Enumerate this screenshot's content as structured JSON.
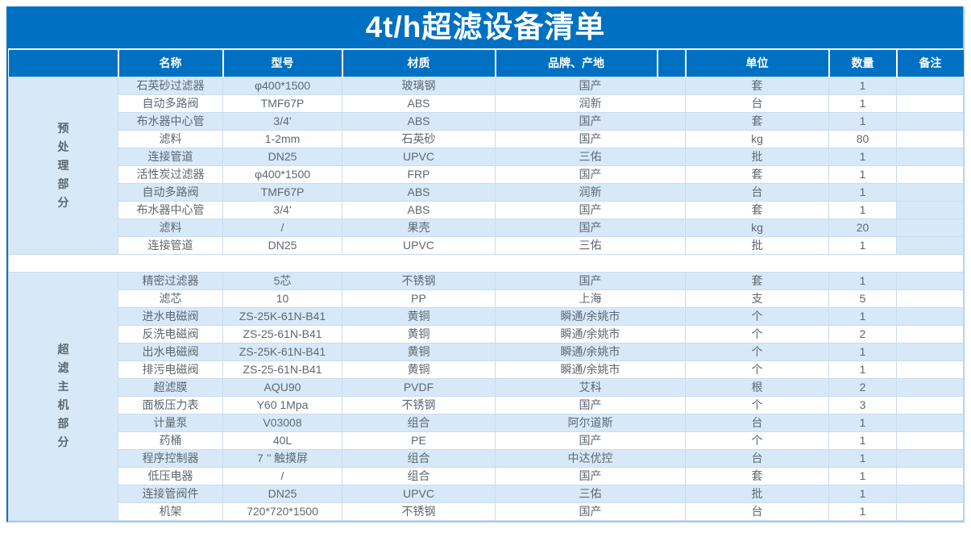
{
  "title": "4t/h超滤设备清单",
  "colors": {
    "header_blue": "#0070c3",
    "row_stripe_blue": "#d7e9f9",
    "border_light": "#cbdbea",
    "body_text": "#5d6770",
    "title_text": "#ffffff"
  },
  "table": {
    "columns": [
      {
        "key": "name",
        "label": "名称"
      },
      {
        "key": "model",
        "label": "型号"
      },
      {
        "key": "material",
        "label": "材质"
      },
      {
        "key": "brand",
        "label": "品牌、产地"
      },
      {
        "key": "unit",
        "label": "单位"
      },
      {
        "key": "qty",
        "label": "数量"
      },
      {
        "key": "note",
        "label": "备注"
      }
    ],
    "sections": [
      {
        "label": "预处理部分",
        "extra_blue_note_rows": [
          7,
          9
        ],
        "rows": [
          {
            "name": "石英砂过滤器",
            "model": "φ400*1500",
            "material": "玻璃钢",
            "brand": "国产",
            "unit": "套",
            "qty": "1",
            "note": ""
          },
          {
            "name": "自动多路阀",
            "model": "TMF67P",
            "material": "ABS",
            "brand": "润新",
            "unit": "台",
            "qty": "1",
            "note": ""
          },
          {
            "name": "布水器中心管",
            "model": "3/4'",
            "material": "ABS",
            "brand": "国产",
            "unit": "套",
            "qty": "1",
            "note": ""
          },
          {
            "name": "滤料",
            "model": "1-2mm",
            "material": "石英砂",
            "brand": "国产",
            "unit": "kg",
            "qty": "80",
            "note": ""
          },
          {
            "name": "连接管道",
            "model": "DN25",
            "material": "UPVC",
            "brand": "三佑",
            "unit": "批",
            "qty": "1",
            "note": ""
          },
          {
            "name": "活性炭过滤器",
            "model": "φ400*1500",
            "material": "FRP",
            "brand": "国产",
            "unit": "套",
            "qty": "1",
            "note": ""
          },
          {
            "name": "自动多路阀",
            "model": "TMF67P",
            "material": "ABS",
            "brand": "润新",
            "unit": "台",
            "qty": "1",
            "note": ""
          },
          {
            "name": "布水器中心管",
            "model": "3/4'",
            "material": "ABS",
            "brand": "国产",
            "unit": "套",
            "qty": "1",
            "note": ""
          },
          {
            "name": "滤料",
            "model": "/",
            "material": "果壳",
            "brand": "国产",
            "unit": "kg",
            "qty": "20",
            "note": ""
          },
          {
            "name": "连接管道",
            "model": "DN25",
            "material": "UPVC",
            "brand": "三佑",
            "unit": "批",
            "qty": "1",
            "note": ""
          }
        ]
      },
      {
        "label": "超滤主机部分",
        "extra_blue_note_rows": [],
        "rows": [
          {
            "name": "精密过滤器",
            "model": "5芯",
            "material": "不锈钢",
            "brand": "国产",
            "unit": "套",
            "qty": "1",
            "note": ""
          },
          {
            "name": "滤芯",
            "model": "10",
            "material": "PP",
            "brand": "上海",
            "unit": "支",
            "qty": "5",
            "note": ""
          },
          {
            "name": "进水电磁阀",
            "model": "ZS-25K-61N-B41",
            "material": "黄铜",
            "brand": "瞬通/余姚市",
            "unit": "个",
            "qty": "1",
            "note": ""
          },
          {
            "name": "反洗电磁阀",
            "model": "ZS-25-61N-B41",
            "material": "黄铜",
            "brand": "瞬通/余姚市",
            "unit": "个",
            "qty": "2",
            "note": ""
          },
          {
            "name": "出水电磁阀",
            "model": "ZS-25K-61N-B41",
            "material": "黄铜",
            "brand": "瞬通/余姚市",
            "unit": "个",
            "qty": "1",
            "note": ""
          },
          {
            "name": "排污电磁阀",
            "model": "ZS-25-61N-B41",
            "material": "黄铜",
            "brand": "瞬通/余姚市",
            "unit": "个",
            "qty": "1",
            "note": ""
          },
          {
            "name": "超滤膜",
            "model": "AQU90",
            "material": "PVDF",
            "brand": "艾科",
            "unit": "根",
            "qty": "2",
            "note": ""
          },
          {
            "name": "面板压力表",
            "model": "Y60 1Mpa",
            "material": "不锈钢",
            "brand": "国产",
            "unit": "个",
            "qty": "3",
            "note": ""
          },
          {
            "name": "计量泵",
            "model": "V03008",
            "material": "组合",
            "brand": "阿尔道斯",
            "unit": "台",
            "qty": "1",
            "note": ""
          },
          {
            "name": "药桶",
            "model": "40L",
            "material": "PE",
            "brand": "国产",
            "unit": "个",
            "qty": "1",
            "note": ""
          },
          {
            "name": "程序控制器",
            "model": "7 ’’ 触摸屏",
            "material": "组合",
            "brand": "中达优控",
            "unit": "台",
            "qty": "1",
            "note": ""
          },
          {
            "name": "低压电器",
            "model": "/",
            "material": "组合",
            "brand": "国产",
            "unit": "套",
            "qty": "1",
            "note": ""
          },
          {
            "name": "连接管阀件",
            "model": "DN25",
            "material": "UPVC",
            "brand": "三佑",
            "unit": "批",
            "qty": "1",
            "note": ""
          },
          {
            "name": "机架",
            "model": "720*720*1500",
            "material": "不锈钢",
            "brand": "国产",
            "unit": "台",
            "qty": "1",
            "note": ""
          }
        ]
      }
    ]
  }
}
